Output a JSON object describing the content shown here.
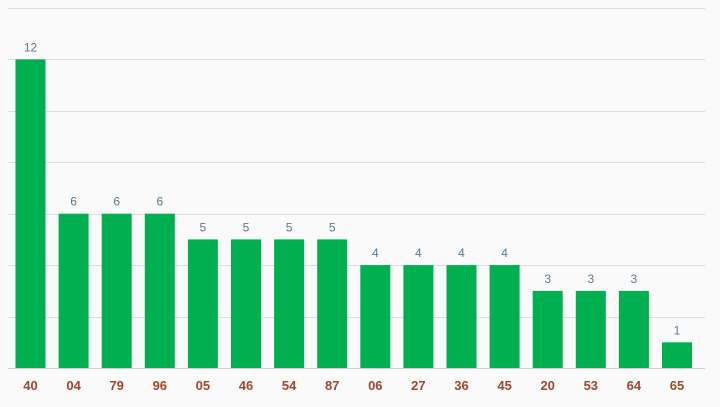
{
  "chart_data": {
    "type": "bar",
    "title": "",
    "xlabel": "",
    "ylabel": "",
    "categories": [
      "40",
      "04",
      "79",
      "96",
      "05",
      "46",
      "54",
      "87",
      "06",
      "27",
      "36",
      "45",
      "20",
      "53",
      "64",
      "65"
    ],
    "values": [
      12,
      6,
      6,
      6,
      5,
      5,
      5,
      5,
      4,
      4,
      4,
      4,
      3,
      3,
      3,
      1
    ],
    "ylim": [
      0,
      14
    ],
    "grid": true,
    "legend": "none",
    "colors": {
      "bar": "#00b050",
      "value_label": "#5b7a90",
      "tick_label": "#a0472c",
      "grid": "#dcdcdc",
      "background": "#fafafa"
    }
  }
}
